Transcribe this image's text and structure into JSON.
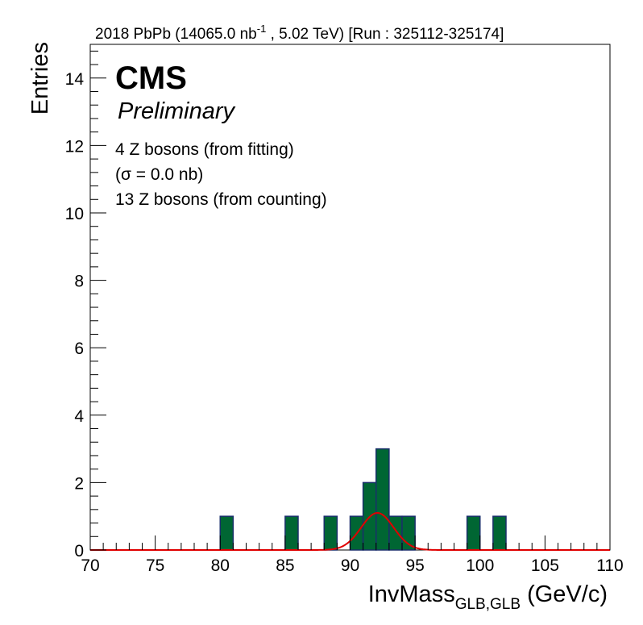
{
  "chart_data": {
    "type": "bar",
    "header": {
      "prefix": "2018 PbPb (14065.0 nb",
      "superscript": "-1",
      "suffix": " , 5.02 TeV) [Run : 325112-325174]"
    },
    "cms_label": "CMS",
    "preliminary_label": "Preliminary",
    "annotations": [
      "4 Z bosons (from fitting)",
      "(σ = 0.0 nb)",
      "13 Z bosons (from counting)"
    ],
    "ylabel": "Entries",
    "xlabel": {
      "main": "InvMass",
      "subscript": "GLB,GLB",
      "unit": " (GeV/c)"
    },
    "xlim": [
      70,
      110
    ],
    "ylim": [
      0,
      15
    ],
    "bin_width": 1,
    "x_ticks": [
      "70",
      "75",
      "80",
      "85",
      "90",
      "95",
      "100",
      "105",
      "110"
    ],
    "y_ticks": [
      "0",
      "2",
      "4",
      "6",
      "8",
      "10",
      "12",
      "14"
    ],
    "bins": [
      {
        "low": 80,
        "count": 1
      },
      {
        "low": 85,
        "count": 1
      },
      {
        "low": 88,
        "count": 1
      },
      {
        "low": 90,
        "count": 1
      },
      {
        "low": 91,
        "count": 2
      },
      {
        "low": 92,
        "count": 3
      },
      {
        "low": 93,
        "count": 1
      },
      {
        "low": 94,
        "count": 1
      },
      {
        "low": 99,
        "count": 1
      },
      {
        "low": 101,
        "count": 1
      }
    ],
    "fit": {
      "type": "gaussian",
      "mean": 92.1,
      "sigma": 1.25,
      "amplitude": 1.1
    },
    "colors": {
      "bar_fill": "#006633",
      "bar_edge": "#1a2f6b",
      "fit_line": "#e00000"
    }
  }
}
